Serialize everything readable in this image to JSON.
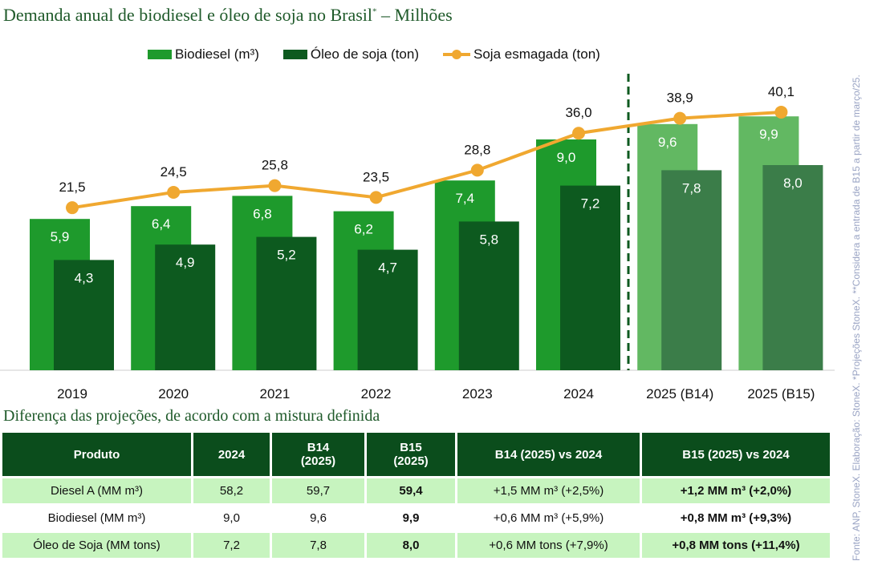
{
  "title": "Demanda anual de biodiesel e óleo de soja no Brasil",
  "title_mark": "*",
  "title_suffix": " – Milhões",
  "chart_data": {
    "type": "bar",
    "categories": [
      "2019",
      "2020",
      "2021",
      "2022",
      "2023",
      "2024",
      "2025 (B14)",
      "2025 (B15)"
    ],
    "series": [
      {
        "name": "Biodiesel (m³)",
        "type": "bar",
        "color": "#1e9a2c",
        "projected_color": "#62b862",
        "values": [
          5.9,
          6.4,
          6.8,
          6.2,
          7.4,
          9.0,
          9.6,
          9.9
        ],
        "labels": [
          "5,9",
          "6,4",
          "6,8",
          "6,2",
          "7,4",
          "9,0",
          "9,6",
          "9,9"
        ]
      },
      {
        "name": "Óleo de soja (ton)",
        "type": "bar",
        "color": "#0d5a1f",
        "projected_color": "#3b7d49",
        "values": [
          4.3,
          4.9,
          5.2,
          4.7,
          5.8,
          7.2,
          7.8,
          8.0
        ],
        "labels": [
          "4,3",
          "4,9",
          "5,2",
          "4,7",
          "5,8",
          "7,2",
          "7,8",
          "8,0"
        ]
      },
      {
        "name": "Soja esmagada (ton)",
        "type": "line",
        "color": "#f0a830",
        "values": [
          21.5,
          24.5,
          25.8,
          23.5,
          28.8,
          36.0,
          38.9,
          40.1
        ],
        "labels": [
          "21,5",
          "24,5",
          "25,8",
          "23,5",
          "28,8",
          "36,0",
          "38,9",
          "40,1"
        ]
      }
    ],
    "projection_start": "2025 (B14)",
    "legend": "top",
    "grid": false
  },
  "table": {
    "subtitle": "Diferença das projeções, de acordo com a mistura definida",
    "headers": [
      "Produto",
      "2024",
      "B14\n(2025)",
      "B15\n(2025)",
      "B14 (2025) vs 2024",
      "B15 (2025) vs 2024"
    ],
    "rows": [
      [
        "Diesel A (MM m³)",
        "58,2",
        "59,7",
        "59,4",
        "+1,5 MM m³ (+2,5%)",
        "+1,2 MM m³ (+2,0%)"
      ],
      [
        "Biodiesel (MM m³)",
        "9,0",
        "9,6",
        "9,9",
        "+0,6 MM m³ (+5,9%)",
        "+0,8 MM m³ (+9,3%)"
      ],
      [
        "Óleo de Soja (MM tons)",
        "7,2",
        "7,8",
        "8,0",
        "+0,6 MM tons (+7,9%)",
        "+0,8 MM tons (+11,4%)"
      ]
    ]
  },
  "source": "Fonte: ANP, StoneX. Elaboração: StoneX. *Projeções StoneX. **Considera a entrada de B15 a partir de março/25."
}
